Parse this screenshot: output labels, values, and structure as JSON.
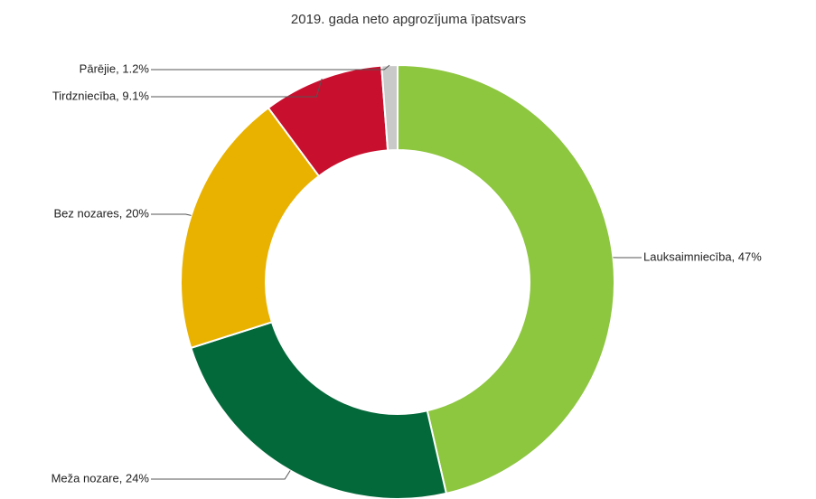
{
  "chart_data": {
    "type": "donut",
    "title": "2019. gada neto apgrozījuma īpatsvars",
    "values": [
      47,
      24,
      20,
      9.1,
      1.2
    ],
    "value_labels": [
      "Lauksaimniecība, 47%",
      "Meža nozare, 24%",
      "Bez nozares, 20%",
      "Tirdzniecība, 9.1%",
      "Pārējie, 1.2%"
    ],
    "colors": [
      "#8dc63f",
      "#04693a",
      "#e9b200",
      "#c8102e",
      "#c9c9c9"
    ]
  }
}
